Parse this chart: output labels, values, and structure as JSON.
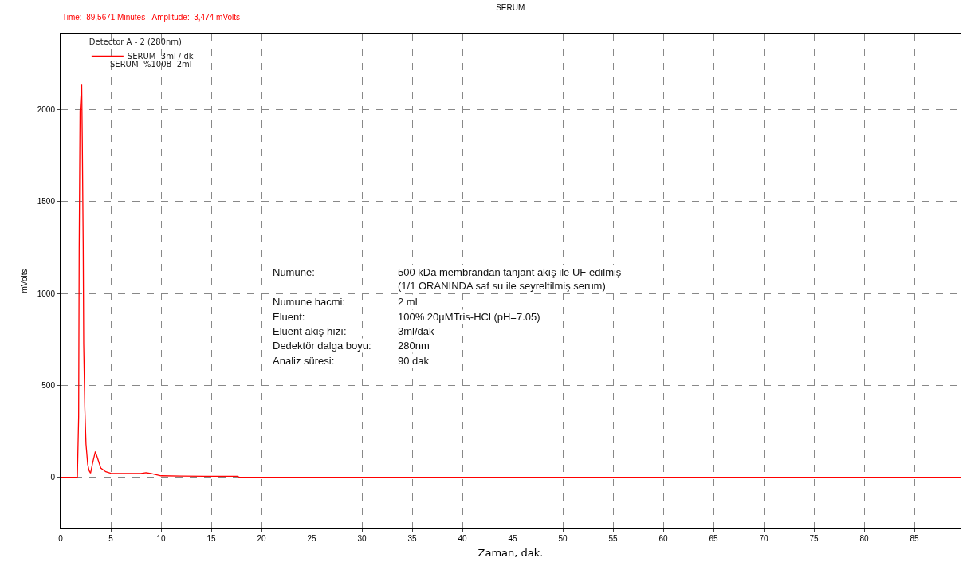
{
  "chart_data": {
    "type": "line",
    "title": "SERUM",
    "xlabel": "Zaman, dak.",
    "ylabel": "mVolts",
    "legend_title": "Detector A - 2 (280nm)",
    "x": [
      0,
      1.6,
      1.67,
      1.8,
      1.85,
      1.94,
      2.1,
      2.16,
      2.25,
      2.3,
      2.41,
      2.53,
      2.7,
      2.85,
      2.98,
      3.2,
      3.46,
      3.7,
      4.0,
      4.5,
      5,
      6,
      8,
      8.5,
      9,
      10,
      12,
      15,
      17.6,
      17.8,
      89.6
    ],
    "series": [
      {
        "name": "SERUM  3ml / dk",
        "color": "#ff0000",
        "values": [
          0,
          0,
          0,
          330,
          1240,
          1990,
          2140,
          1840,
          1260,
          725,
          380,
          180,
          70,
          35,
          22,
          80,
          140,
          100,
          50,
          30,
          22,
          20,
          20,
          25,
          20,
          8,
          6,
          5,
          5,
          0,
          0
        ]
      }
    ],
    "xlim": [
      0,
      89.6
    ],
    "ylim": [
      -275,
      2410
    ],
    "xticks": [
      0,
      5,
      10,
      15,
      20,
      25,
      30,
      35,
      40,
      45,
      50,
      55,
      60,
      65,
      70,
      75,
      80,
      85
    ],
    "yticks": [
      0,
      500,
      1000,
      1500,
      2000
    ],
    "grid": true,
    "legend": "top left",
    "marker": "none",
    "line_style": "solid",
    "annotations": [
      "Time:  89,5671 Minutes - Amplitude:  3,474 mVolts",
      "SERUM  %100B  2ml",
      "Numune:",
      "500 kDa membrandan tanjant akış ile UF edilmiş\n(1/1 ORANINDA saf su ile seyreltilmiş serum)",
      "Numune hacmi:",
      "2 ml",
      "Eluent:",
      "100% 20µMTris-HCl (pH=7.05)",
      "Eluent akış hızı:",
      "3ml/dak",
      "Dedektör dalga boyu:",
      "280nm",
      "Analiz süresi:",
      "90 dak"
    ]
  }
}
